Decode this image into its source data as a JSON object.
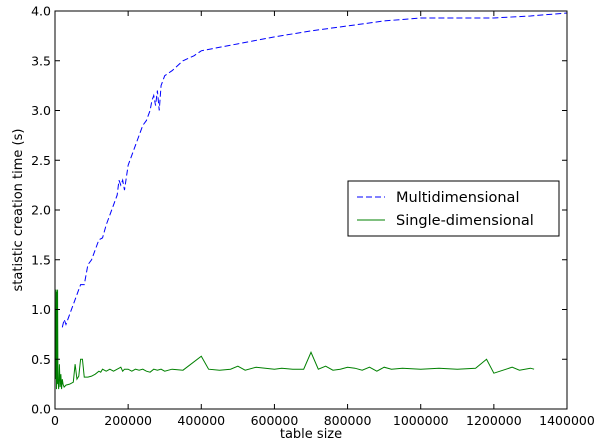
{
  "chart_data": {
    "type": "line",
    "title": "",
    "xlabel": "table size",
    "ylabel": "statistic creation time (s)",
    "xlim": [
      0,
      1400000
    ],
    "ylim": [
      0.0,
      4.0
    ],
    "grid": false,
    "legend_position": "center-right",
    "x_ticks": [
      {
        "value": 0,
        "label": "0"
      },
      {
        "value": 200000,
        "label": "200000"
      },
      {
        "value": 400000,
        "label": "400000"
      },
      {
        "value": 600000,
        "label": "600000"
      },
      {
        "value": 800000,
        "label": "800000"
      },
      {
        "value": 1000000,
        "label": "1000000"
      },
      {
        "value": 1200000,
        "label": "1200000"
      },
      {
        "value": 1400000,
        "label": "1400000"
      }
    ],
    "y_ticks": [
      {
        "value": 0.0,
        "label": "0.0"
      },
      {
        "value": 0.5,
        "label": "0.5"
      },
      {
        "value": 1.0,
        "label": "1.0"
      },
      {
        "value": 1.5,
        "label": "1.5"
      },
      {
        "value": 2.0,
        "label": "2.0"
      },
      {
        "value": 2.5,
        "label": "2.5"
      },
      {
        "value": 3.0,
        "label": "3.0"
      },
      {
        "value": 3.5,
        "label": "3.5"
      },
      {
        "value": 4.0,
        "label": "4.0"
      }
    ],
    "series": [
      {
        "name": "Multidimensional",
        "color": "#0000ff",
        "style": "dashed",
        "points": [
          [
            20000,
            0.82
          ],
          [
            25000,
            0.9
          ],
          [
            30000,
            0.85
          ],
          [
            40000,
            0.95
          ],
          [
            60000,
            1.15
          ],
          [
            70000,
            1.25
          ],
          [
            80000,
            1.25
          ],
          [
            85000,
            1.35
          ],
          [
            90000,
            1.45
          ],
          [
            100000,
            1.5
          ],
          [
            110000,
            1.6
          ],
          [
            120000,
            1.7
          ],
          [
            130000,
            1.72
          ],
          [
            140000,
            1.85
          ],
          [
            150000,
            1.95
          ],
          [
            160000,
            2.05
          ],
          [
            170000,
            2.15
          ],
          [
            175000,
            2.3
          ],
          [
            180000,
            2.25
          ],
          [
            185000,
            2.3
          ],
          [
            190000,
            2.2
          ],
          [
            200000,
            2.45
          ],
          [
            210000,
            2.55
          ],
          [
            220000,
            2.65
          ],
          [
            230000,
            2.75
          ],
          [
            240000,
            2.85
          ],
          [
            250000,
            2.9
          ],
          [
            260000,
            3.0
          ],
          [
            265000,
            3.1
          ],
          [
            270000,
            3.15
          ],
          [
            275000,
            3.05
          ],
          [
            280000,
            3.2
          ],
          [
            285000,
            3.0
          ],
          [
            290000,
            3.25
          ],
          [
            300000,
            3.35
          ],
          [
            320000,
            3.4
          ],
          [
            350000,
            3.5
          ],
          [
            380000,
            3.55
          ],
          [
            400000,
            3.6
          ],
          [
            500000,
            3.67
          ],
          [
            600000,
            3.74
          ],
          [
            700000,
            3.8
          ],
          [
            800000,
            3.85
          ],
          [
            900000,
            3.9
          ],
          [
            1000000,
            3.93
          ],
          [
            1100000,
            3.93
          ],
          [
            1200000,
            3.93
          ],
          [
            1300000,
            3.95
          ],
          [
            1400000,
            3.98
          ]
        ]
      },
      {
        "name": "Single-dimensional",
        "color": "#008000",
        "style": "solid",
        "points": [
          [
            2000,
            0.3
          ],
          [
            3000,
            1.2
          ],
          [
            4000,
            0.2
          ],
          [
            5000,
            1.18
          ],
          [
            6000,
            0.25
          ],
          [
            7000,
            1.2
          ],
          [
            8000,
            0.3
          ],
          [
            10000,
            0.2
          ],
          [
            12000,
            0.45
          ],
          [
            14000,
            0.22
          ],
          [
            16000,
            0.35
          ],
          [
            18000,
            0.2
          ],
          [
            20000,
            0.3
          ],
          [
            22000,
            0.25
          ],
          [
            25000,
            0.22
          ],
          [
            30000,
            0.24
          ],
          [
            40000,
            0.25
          ],
          [
            50000,
            0.27
          ],
          [
            55000,
            0.45
          ],
          [
            60000,
            0.3
          ],
          [
            65000,
            0.33
          ],
          [
            70000,
            0.5
          ],
          [
            75000,
            0.5
          ],
          [
            80000,
            0.32
          ],
          [
            90000,
            0.32
          ],
          [
            100000,
            0.33
          ],
          [
            110000,
            0.35
          ],
          [
            120000,
            0.38
          ],
          [
            125000,
            0.37
          ],
          [
            130000,
            0.4
          ],
          [
            140000,
            0.38
          ],
          [
            150000,
            0.4
          ],
          [
            160000,
            0.38
          ],
          [
            170000,
            0.4
          ],
          [
            180000,
            0.42
          ],
          [
            185000,
            0.38
          ],
          [
            190000,
            0.4
          ],
          [
            200000,
            0.4
          ],
          [
            210000,
            0.38
          ],
          [
            220000,
            0.4
          ],
          [
            230000,
            0.39
          ],
          [
            240000,
            0.4
          ],
          [
            250000,
            0.38
          ],
          [
            260000,
            0.37
          ],
          [
            270000,
            0.4
          ],
          [
            280000,
            0.39
          ],
          [
            290000,
            0.4
          ],
          [
            300000,
            0.38
          ],
          [
            320000,
            0.4
          ],
          [
            350000,
            0.39
          ],
          [
            400000,
            0.53
          ],
          [
            420000,
            0.4
          ],
          [
            450000,
            0.39
          ],
          [
            480000,
            0.4
          ],
          [
            500000,
            0.43
          ],
          [
            520000,
            0.39
          ],
          [
            550000,
            0.42
          ],
          [
            600000,
            0.4
          ],
          [
            620000,
            0.41
          ],
          [
            650000,
            0.4
          ],
          [
            680000,
            0.4
          ],
          [
            700000,
            0.57
          ],
          [
            720000,
            0.4
          ],
          [
            740000,
            0.43
          ],
          [
            760000,
            0.39
          ],
          [
            780000,
            0.4
          ],
          [
            800000,
            0.42
          ],
          [
            820000,
            0.41
          ],
          [
            840000,
            0.39
          ],
          [
            860000,
            0.42
          ],
          [
            880000,
            0.38
          ],
          [
            900000,
            0.42
          ],
          [
            920000,
            0.4
          ],
          [
            950000,
            0.41
          ],
          [
            1000000,
            0.4
          ],
          [
            1050000,
            0.41
          ],
          [
            1100000,
            0.4
          ],
          [
            1150000,
            0.41
          ],
          [
            1180000,
            0.5
          ],
          [
            1200000,
            0.36
          ],
          [
            1250000,
            0.42
          ],
          [
            1270000,
            0.39
          ],
          [
            1300000,
            0.41
          ],
          [
            1310000,
            0.4
          ]
        ]
      }
    ]
  }
}
